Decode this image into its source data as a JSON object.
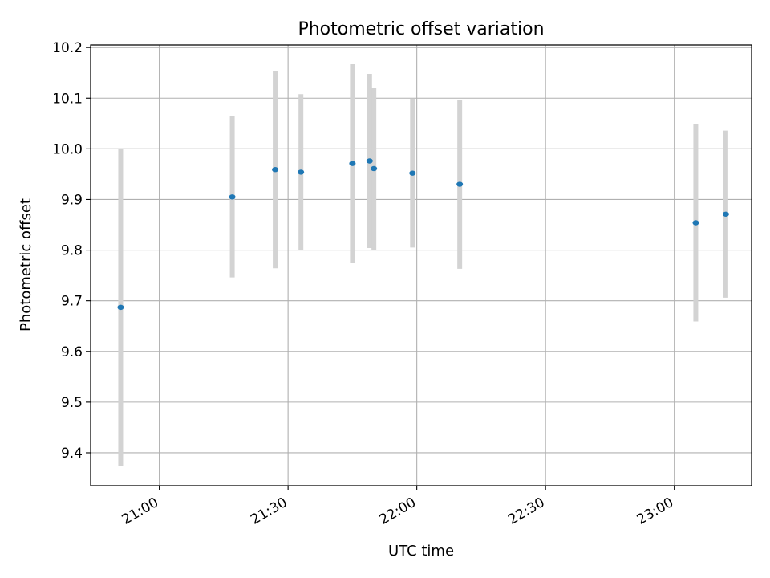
{
  "chart_data": {
    "type": "scatter",
    "title": "Photometric offset variation",
    "xlabel": "UTC time",
    "ylabel": "Photometric offset",
    "xlim": [
      "20:44",
      "23:18"
    ],
    "ylim": [
      9.335,
      10.205
    ],
    "grid": true,
    "x_ticks": [
      "21:00",
      "21:30",
      "22:00",
      "22:30",
      "23:00"
    ],
    "y_ticks": [
      "9.4",
      "9.5",
      "9.6",
      "9.7",
      "9.8",
      "9.9",
      "10.0",
      "10.1",
      "10.2"
    ],
    "colors": {
      "point": "#1f77b4",
      "errorbar": "#d3d3d3",
      "grid": "#b0b0b0",
      "axes": "#000000"
    },
    "points": [
      {
        "x": "20:51",
        "y": 9.687,
        "err": 0.313
      },
      {
        "x": "21:17",
        "y": 9.905,
        "err": 0.159
      },
      {
        "x": "21:27",
        "y": 9.959,
        "err": 0.195
      },
      {
        "x": "21:33",
        "y": 9.954,
        "err": 0.154
      },
      {
        "x": "21:45",
        "y": 9.971,
        "err": 0.196
      },
      {
        "x": "21:49",
        "y": 9.976,
        "err": 0.172
      },
      {
        "x": "21:50",
        "y": 9.961,
        "err": 0.16
      },
      {
        "x": "21:59",
        "y": 9.952,
        "err": 0.147
      },
      {
        "x": "22:10",
        "y": 9.93,
        "err": 0.167
      },
      {
        "x": "23:05",
        "y": 9.854,
        "err": 0.195
      },
      {
        "x": "23:12",
        "y": 9.871,
        "err": 0.165
      }
    ]
  }
}
